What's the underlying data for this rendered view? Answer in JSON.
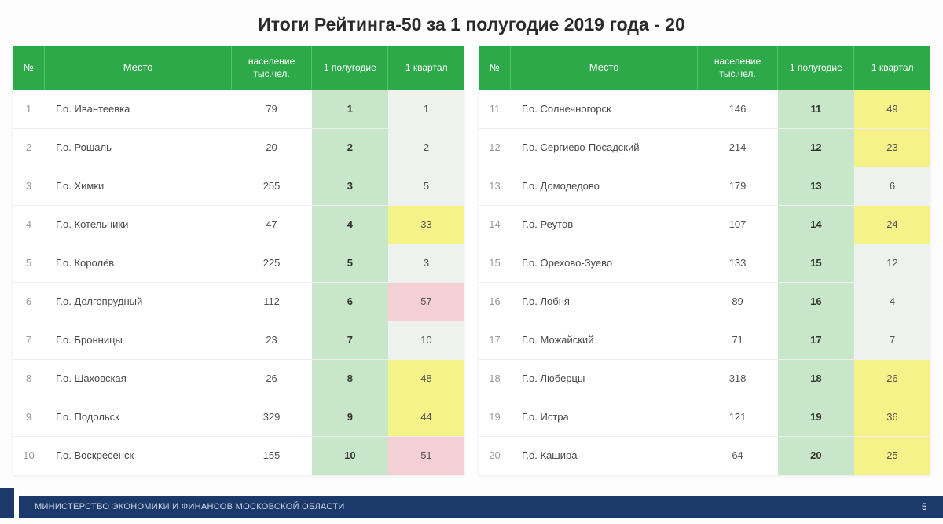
{
  "title": "Итоги Рейтинга-50 за 1 полугодие 2019 года - 20",
  "headers": {
    "num": "№",
    "place": "Место",
    "pop": "население тыс.чел.",
    "half": "1 полугодие",
    "q": "1 квартал"
  },
  "colors": {
    "header_bg": "#2ea949",
    "half_bg": "#c8e6c9",
    "neutral": "#eef2ee",
    "yellow": "#f6f28a",
    "pink": "#f4cfd4",
    "light_green": "#e2efd9"
  },
  "left": [
    {
      "n": 1,
      "place": "Г.о. Ивантеевка",
      "pop": 79,
      "half": 1,
      "q": 1,
      "q_color": "neutral"
    },
    {
      "n": 2,
      "place": "Г.о. Рошаль",
      "pop": 20,
      "half": 2,
      "q": 2,
      "q_color": "neutral"
    },
    {
      "n": 3,
      "place": "Г.о. Химки",
      "pop": 255,
      "half": 3,
      "q": 5,
      "q_color": "neutral"
    },
    {
      "n": 4,
      "place": "Г.о. Котельники",
      "pop": 47,
      "half": 4,
      "q": 33,
      "q_color": "yellow"
    },
    {
      "n": 5,
      "place": "Г.о. Королёв",
      "pop": 225,
      "half": 5,
      "q": 3,
      "q_color": "neutral"
    },
    {
      "n": 6,
      "place": "Г.о. Долгопрудный",
      "pop": 112,
      "half": 6,
      "q": 57,
      "q_color": "pink"
    },
    {
      "n": 7,
      "place": "Г.о. Бронницы",
      "pop": 23,
      "half": 7,
      "q": 10,
      "q_color": "neutral"
    },
    {
      "n": 8,
      "place": "Г.о. Шаховская",
      "pop": 26,
      "half": 8,
      "q": 48,
      "q_color": "yellow"
    },
    {
      "n": 9,
      "place": "Г.о. Подольск",
      "pop": 329,
      "half": 9,
      "q": 44,
      "q_color": "yellow"
    },
    {
      "n": 10,
      "place": "Г.о. Воскресенск",
      "pop": 155,
      "half": 10,
      "q": 51,
      "q_color": "pink"
    }
  ],
  "right": [
    {
      "n": 11,
      "place": "Г.о. Солнечногорск",
      "pop": 146,
      "half": 11,
      "q": 49,
      "q_color": "yellow"
    },
    {
      "n": 12,
      "place": "Г.о. Сергиево-Посадский",
      "pop": 214,
      "half": 12,
      "q": 23,
      "q_color": "yellow"
    },
    {
      "n": 13,
      "place": "Г.о. Домодедово",
      "pop": 179,
      "half": 13,
      "q": 6,
      "q_color": "neutral"
    },
    {
      "n": 14,
      "place": "Г.о. Реутов",
      "pop": 107,
      "half": 14,
      "q": 24,
      "q_color": "yellow"
    },
    {
      "n": 15,
      "place": "Г.о. Орехово-Зуево",
      "pop": 133,
      "half": 15,
      "q": 12,
      "q_color": "neutral"
    },
    {
      "n": 16,
      "place": "Г.о. Лобня",
      "pop": 89,
      "half": 16,
      "q": 4,
      "q_color": "neutral"
    },
    {
      "n": 17,
      "place": "Г.о. Можайский",
      "pop": 71,
      "half": 17,
      "q": 7,
      "q_color": "neutral"
    },
    {
      "n": 18,
      "place": "Г.о. Люберцы",
      "pop": 318,
      "half": 18,
      "q": 26,
      "q_color": "yellow"
    },
    {
      "n": 19,
      "place": "Г.о. Истра",
      "pop": 121,
      "half": 19,
      "q": 36,
      "q_color": "yellow"
    },
    {
      "n": 20,
      "place": "Г.о. Кашира",
      "pop": 64,
      "half": 20,
      "q": 25,
      "q_color": "yellow"
    }
  ],
  "footer": {
    "ministry": "МИНИСТЕРСТВО ЭКОНОМИКИ И ФИНАНСОВ МОСКОВСКОЙ ОБЛАСТИ",
    "page": "5"
  }
}
